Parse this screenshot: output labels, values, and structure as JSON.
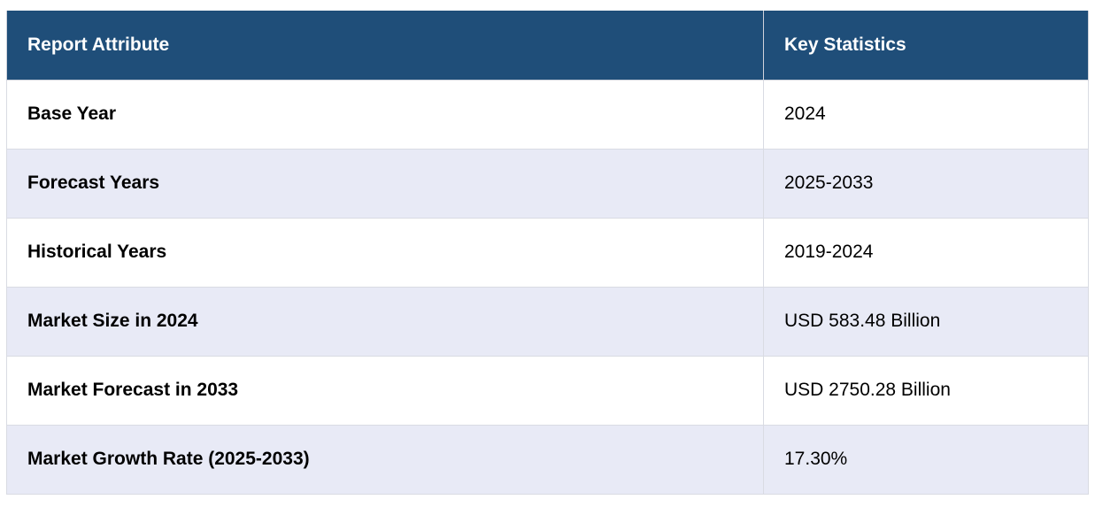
{
  "table": {
    "headers": [
      "Report Attribute",
      "Key Statistics"
    ],
    "rows": [
      {
        "attribute": "Base Year",
        "value": "2024"
      },
      {
        "attribute": "Forecast Years",
        "value": "2025-2033"
      },
      {
        "attribute": "Historical Years",
        "value": "2019-2024"
      },
      {
        "attribute": "Market Size in 2024",
        "value": "USD 583.48 Billion"
      },
      {
        "attribute": "Market Forecast in 2033",
        "value": "USD 2750.28 Billion"
      },
      {
        "attribute": "Market Growth Rate (2025-2033)",
        "value": "17.30%"
      }
    ]
  },
  "colors": {
    "header_bg": "#1f4e79",
    "header_text": "#ffffff",
    "row_alt_bg": "#e8eaf6",
    "row_bg": "#ffffff"
  }
}
